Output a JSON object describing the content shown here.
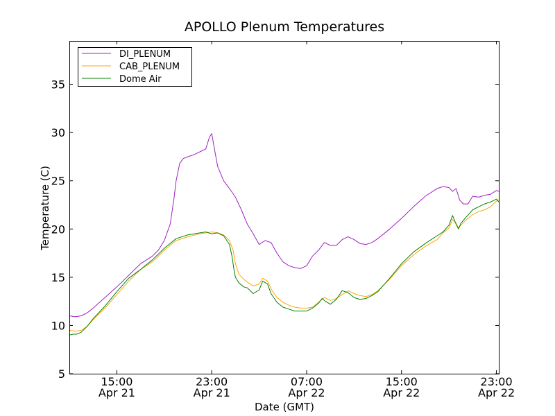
{
  "chart_data": {
    "type": "line",
    "title": "APOLLO Plenum Temperatures",
    "xlabel": "Date (GMT)",
    "ylabel": "Temperature (C)",
    "x_unit": "hours since Apr 21 11:00 GMT",
    "xlim": [
      0,
      36.2
    ],
    "ylim": [
      5,
      39.5
    ],
    "grid": false,
    "legend_position": "top-left",
    "y_ticks": [
      5,
      10,
      15,
      20,
      25,
      30,
      35
    ],
    "x_ticks": [
      {
        "x": 4,
        "line1": "15:00",
        "line2": "Apr 21"
      },
      {
        "x": 12,
        "line1": "23:00",
        "line2": "Apr 21"
      },
      {
        "x": 20,
        "line1": "07:00",
        "line2": "Apr 22"
      },
      {
        "x": 28,
        "line1": "15:00",
        "line2": "Apr 22"
      },
      {
        "x": 36,
        "line1": "23:00",
        "line2": "Apr 22"
      }
    ],
    "series": [
      {
        "name": "DI_PLENUM",
        "color": "#a020c0",
        "points": [
          [
            0,
            11.0
          ],
          [
            0.5,
            10.9
          ],
          [
            1,
            11.0
          ],
          [
            1.5,
            11.3
          ],
          [
            2,
            11.8
          ],
          [
            3,
            12.9
          ],
          [
            4,
            14.0
          ],
          [
            5,
            15.2
          ],
          [
            6,
            16.4
          ],
          [
            7,
            17.2
          ],
          [
            7.5,
            17.8
          ],
          [
            8,
            18.8
          ],
          [
            8.5,
            20.5
          ],
          [
            8.8,
            23.0
          ],
          [
            9,
            25.0
          ],
          [
            9.3,
            26.8
          ],
          [
            9.6,
            27.3
          ],
          [
            10,
            27.5
          ],
          [
            10.5,
            27.7
          ],
          [
            11,
            28.0
          ],
          [
            11.5,
            28.3
          ],
          [
            11.8,
            29.5
          ],
          [
            12,
            29.9
          ],
          [
            12.2,
            28.5
          ],
          [
            12.5,
            26.5
          ],
          [
            13,
            25.0
          ],
          [
            13.5,
            24.2
          ],
          [
            14,
            23.3
          ],
          [
            14.5,
            22.0
          ],
          [
            15,
            20.5
          ],
          [
            15.5,
            19.5
          ],
          [
            16,
            18.4
          ],
          [
            16.5,
            18.8
          ],
          [
            17,
            18.6
          ],
          [
            17.5,
            17.5
          ],
          [
            18,
            16.6
          ],
          [
            18.5,
            16.2
          ],
          [
            19,
            16.0
          ],
          [
            19.5,
            15.9
          ],
          [
            20,
            16.2
          ],
          [
            20.5,
            17.2
          ],
          [
            21,
            17.8
          ],
          [
            21.5,
            18.6
          ],
          [
            22,
            18.3
          ],
          [
            22.5,
            18.3
          ],
          [
            23,
            18.9
          ],
          [
            23.5,
            19.2
          ],
          [
            24,
            18.9
          ],
          [
            24.5,
            18.5
          ],
          [
            25,
            18.4
          ],
          [
            25.5,
            18.6
          ],
          [
            26,
            19.0
          ],
          [
            27,
            20.0
          ],
          [
            28,
            21.1
          ],
          [
            29,
            22.3
          ],
          [
            30,
            23.4
          ],
          [
            31,
            24.2
          ],
          [
            31.5,
            24.4
          ],
          [
            32,
            24.3
          ],
          [
            32.3,
            23.9
          ],
          [
            32.6,
            24.2
          ],
          [
            32.9,
            23.0
          ],
          [
            33.2,
            22.6
          ],
          [
            33.6,
            22.6
          ],
          [
            34,
            23.4
          ],
          [
            34.5,
            23.3
          ],
          [
            35,
            23.5
          ],
          [
            35.5,
            23.6
          ],
          [
            36,
            24.0
          ],
          [
            36.2,
            23.9
          ]
        ]
      },
      {
        "name": "CAB_PLENUM",
        "color": "#ffa500",
        "points": [
          [
            0,
            9.5
          ],
          [
            0.5,
            9.4
          ],
          [
            1,
            9.5
          ],
          [
            1.5,
            9.9
          ],
          [
            2,
            10.6
          ],
          [
            3,
            11.8
          ],
          [
            4,
            13.2
          ],
          [
            5,
            14.6
          ],
          [
            6,
            15.8
          ],
          [
            7,
            16.6
          ],
          [
            8,
            17.8
          ],
          [
            9,
            18.8
          ],
          [
            10,
            19.2
          ],
          [
            11,
            19.5
          ],
          [
            12,
            19.7
          ],
          [
            12.5,
            19.6
          ],
          [
            13,
            19.4
          ],
          [
            13.5,
            18.8
          ],
          [
            13.8,
            17.8
          ],
          [
            14,
            16.4
          ],
          [
            14.3,
            15.3
          ],
          [
            14.7,
            14.8
          ],
          [
            15,
            14.5
          ],
          [
            15.5,
            14.1
          ],
          [
            16,
            14.3
          ],
          [
            16.3,
            14.9
          ],
          [
            16.7,
            14.6
          ],
          [
            17,
            13.8
          ],
          [
            17.5,
            12.9
          ],
          [
            18,
            12.4
          ],
          [
            18.5,
            12.1
          ],
          [
            19,
            11.9
          ],
          [
            19.5,
            11.8
          ],
          [
            20,
            11.8
          ],
          [
            20.5,
            11.9
          ],
          [
            21,
            12.4
          ],
          [
            21.5,
            12.9
          ],
          [
            22,
            12.6
          ],
          [
            22.5,
            12.8
          ],
          [
            23,
            13.2
          ],
          [
            23.5,
            13.6
          ],
          [
            24,
            13.3
          ],
          [
            24.5,
            13.1
          ],
          [
            25,
            13.0
          ],
          [
            25.5,
            13.2
          ],
          [
            26,
            13.6
          ],
          [
            27,
            14.8
          ],
          [
            28,
            16.2
          ],
          [
            29,
            17.3
          ],
          [
            30,
            18.2
          ],
          [
            31,
            18.9
          ],
          [
            31.5,
            19.6
          ],
          [
            32,
            20.1
          ],
          [
            32.3,
            21.0
          ],
          [
            32.6,
            20.6
          ],
          [
            32.8,
            20.1
          ],
          [
            33,
            20.4
          ],
          [
            33.5,
            21.0
          ],
          [
            34,
            21.5
          ],
          [
            34.5,
            21.8
          ],
          [
            35,
            22.0
          ],
          [
            35.5,
            22.3
          ],
          [
            36,
            22.9
          ],
          [
            36.2,
            23.0
          ]
        ]
      },
      {
        "name": "Dome Air",
        "color": "#008000",
        "points": [
          [
            0,
            9.0
          ],
          [
            0.3,
            9.1
          ],
          [
            0.6,
            9.1
          ],
          [
            1,
            9.3
          ],
          [
            1.5,
            9.9
          ],
          [
            2,
            10.7
          ],
          [
            3,
            12.0
          ],
          [
            4,
            13.5
          ],
          [
            5,
            14.9
          ],
          [
            6,
            15.8
          ],
          [
            7,
            16.8
          ],
          [
            8,
            18.0
          ],
          [
            9,
            19.0
          ],
          [
            10,
            19.4
          ],
          [
            11,
            19.6
          ],
          [
            11.5,
            19.7
          ],
          [
            12,
            19.5
          ],
          [
            12.5,
            19.6
          ],
          [
            13,
            19.3
          ],
          [
            13.5,
            18.4
          ],
          [
            13.7,
            17.2
          ],
          [
            13.9,
            15.6
          ],
          [
            14,
            15.0
          ],
          [
            14.3,
            14.4
          ],
          [
            14.7,
            14.0
          ],
          [
            15,
            13.9
          ],
          [
            15.5,
            13.3
          ],
          [
            16,
            13.7
          ],
          [
            16.3,
            14.6
          ],
          [
            16.7,
            14.3
          ],
          [
            17,
            13.3
          ],
          [
            17.5,
            12.4
          ],
          [
            18,
            11.9
          ],
          [
            18.5,
            11.7
          ],
          [
            19,
            11.5
          ],
          [
            19.5,
            11.5
          ],
          [
            20,
            11.5
          ],
          [
            20.5,
            11.8
          ],
          [
            21,
            12.3
          ],
          [
            21.3,
            12.8
          ],
          [
            21.6,
            12.5
          ],
          [
            22,
            12.2
          ],
          [
            22.5,
            12.7
          ],
          [
            23,
            13.6
          ],
          [
            23.5,
            13.4
          ],
          [
            24,
            12.9
          ],
          [
            24.5,
            12.7
          ],
          [
            25,
            12.8
          ],
          [
            25.5,
            13.1
          ],
          [
            26,
            13.5
          ],
          [
            27,
            14.9
          ],
          [
            28,
            16.4
          ],
          [
            29,
            17.6
          ],
          [
            30,
            18.5
          ],
          [
            31,
            19.3
          ],
          [
            31.5,
            19.7
          ],
          [
            32,
            20.4
          ],
          [
            32.3,
            21.4
          ],
          [
            32.6,
            20.5
          ],
          [
            32.8,
            20.0
          ],
          [
            33,
            20.6
          ],
          [
            33.5,
            21.3
          ],
          [
            34,
            22.0
          ],
          [
            34.5,
            22.3
          ],
          [
            35,
            22.6
          ],
          [
            35.5,
            22.8
          ],
          [
            36,
            23.1
          ],
          [
            36.2,
            22.8
          ]
        ]
      }
    ]
  }
}
